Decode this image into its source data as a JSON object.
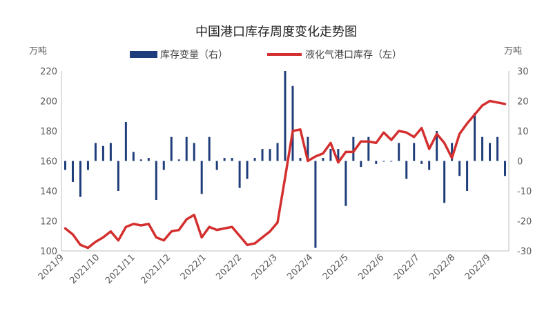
{
  "chart_data": {
    "type": "bar+line",
    "title": "中国港口库存周度变化走势图",
    "left_unit": "万吨",
    "right_unit": "万吨",
    "left_axis": {
      "min": 100,
      "max": 220,
      "ticks": [
        100,
        120,
        140,
        160,
        180,
        200,
        220
      ]
    },
    "right_axis": {
      "min": -30,
      "max": 30,
      "ticks": [
        -30,
        -20,
        -10,
        0,
        10,
        20,
        30
      ]
    },
    "x_tick_labels": [
      "2021/9",
      "2021/10",
      "2021/11",
      "2021/12",
      "2022/1",
      "2022/2",
      "2022/3",
      "2022/4",
      "2022/5",
      "2022/6",
      "2022/7",
      "2022/8",
      "2022/9"
    ],
    "colors": {
      "bar": "#1f3d7a",
      "line": "#d42f2f",
      "axis": "#bfbfbf",
      "text": "#595959"
    },
    "legend": [
      {
        "label": "库存变量（右）",
        "kind": "bar"
      },
      {
        "label": "液化气港口库存（左）",
        "kind": "line"
      }
    ],
    "series": [
      {
        "name": "库存变量（右）",
        "axis": "right",
        "kind": "bar",
        "values": [
          -3,
          -7,
          -12,
          -3,
          6,
          5,
          6,
          -10,
          13,
          3,
          0.5,
          1,
          -13,
          -3,
          8,
          0.5,
          8,
          6,
          -11,
          8,
          -3,
          1,
          1,
          -9,
          -6,
          1,
          4,
          4,
          6,
          30,
          25,
          1,
          8,
          -29,
          1,
          4,
          4,
          -15,
          8,
          -2,
          8,
          -1,
          0,
          0,
          6,
          -6,
          6,
          -1,
          -3,
          10,
          -14,
          6,
          -5,
          -10,
          16,
          8,
          6,
          8,
          -5
        ],
        "x_positions": [
          1,
          2,
          3,
          4,
          5,
          6,
          7,
          8,
          9,
          10,
          11,
          12,
          13,
          14,
          15,
          16,
          17,
          18,
          19,
          20,
          21,
          22,
          23,
          24,
          25,
          26,
          27,
          28,
          29,
          30,
          31,
          32,
          33,
          34,
          35,
          36,
          37,
          38,
          39,
          40,
          41,
          42,
          43,
          44,
          45,
          46,
          47,
          48,
          49,
          50,
          51,
          52,
          53,
          54,
          55,
          56,
          57,
          58,
          59
        ]
      },
      {
        "name": "液化气港口库存（左）",
        "axis": "left",
        "kind": "line",
        "values": [
          115,
          111,
          104,
          102,
          106,
          109,
          113,
          107,
          116,
          118,
          117,
          118,
          109,
          107,
          113,
          114,
          121,
          124,
          109,
          116,
          114,
          115,
          116,
          110,
          104,
          105,
          109,
          113,
          119,
          149,
          180,
          181,
          160,
          163,
          165,
          172,
          159,
          166,
          166,
          173,
          173,
          172,
          179,
          174,
          180,
          179,
          176,
          182,
          168,
          178,
          172,
          162,
          178,
          185,
          191,
          197,
          200,
          199,
          198
        ]
      }
    ]
  }
}
